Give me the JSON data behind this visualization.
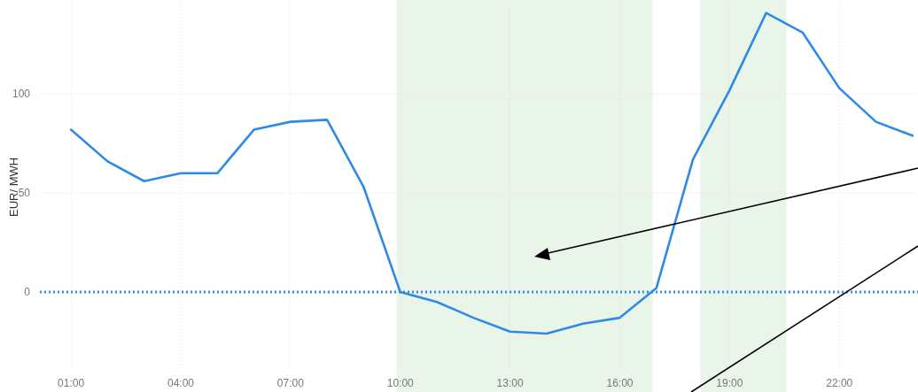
{
  "chart_data": {
    "type": "line",
    "ylabel": "EUR/ MWH",
    "x": [
      1,
      2,
      3,
      4,
      5,
      6,
      7,
      8,
      9,
      10,
      11,
      12,
      13,
      14,
      15,
      16,
      17,
      18,
      19,
      20,
      21,
      22,
      23,
      24
    ],
    "series": [
      {
        "color": "#2f8ae5",
        "values": [
          82,
          66,
          56,
          60,
          60,
          82,
          86,
          87,
          53,
          0,
          -5,
          -13,
          -20,
          -21,
          -16,
          -13,
          2,
          67,
          102,
          141,
          131,
          103,
          86,
          79
        ]
      }
    ],
    "xlim": [
      0.15,
      24.15
    ],
    "ylim": [
      -40,
      146
    ],
    "xticks": [
      {
        "value": 1,
        "label": "01:00"
      },
      {
        "value": 4,
        "label": "04:00"
      },
      {
        "value": 7,
        "label": "07:00"
      },
      {
        "value": 10,
        "label": "10:00"
      },
      {
        "value": 13,
        "label": "13:00"
      },
      {
        "value": 16,
        "label": "16:00"
      },
      {
        "value": 19,
        "label": "19:00"
      },
      {
        "value": 22,
        "label": "22:00"
      }
    ],
    "yticks": [
      0,
      50,
      100
    ],
    "grid": true,
    "marker": "none",
    "line_style": "solid",
    "ref_lines": [
      {
        "axis": "y",
        "value": 0,
        "color": "#3a8ee6",
        "line_style": "dotted"
      }
    ],
    "bands": [
      {
        "axis": "x",
        "from": 9.9,
        "to": 16.9,
        "color": "#eaf5ea"
      },
      {
        "axis": "x",
        "from": 18.2,
        "to": 20.55,
        "color": "#eaf5ea"
      }
    ]
  }
}
